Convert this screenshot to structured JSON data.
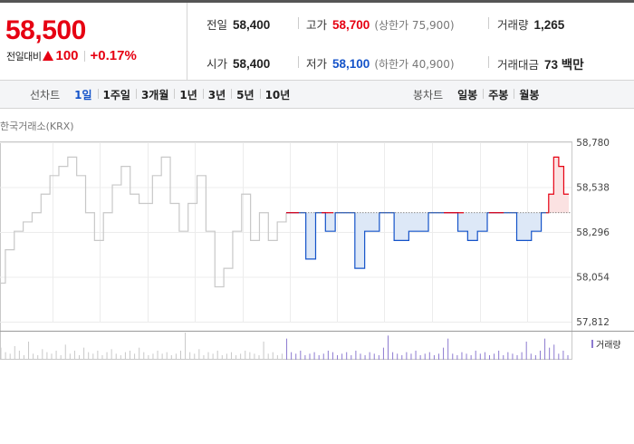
{
  "summary": {
    "current_price": "58,500",
    "change_label": "전일대비",
    "change_amount": "100",
    "change_rate": "+0.17%",
    "prev_close_label": "전일",
    "prev_close": "58,400",
    "high_label": "고가",
    "high": "58,700",
    "upper_limit": "(상한가 75,900)",
    "volume_label": "거래량",
    "volume": "1,265",
    "open_label": "시가",
    "open": "58,400",
    "low_label": "저가",
    "low": "58,100",
    "lower_limit": "(하한가 40,900)",
    "trade_value_label": "거래대금",
    "trade_value": "73 백만",
    "colors": {
      "up": "#e60012",
      "down": "#1453c9"
    }
  },
  "tabs": {
    "line_title": "선차트",
    "line_periods": [
      "1일",
      "1주일",
      "3개월",
      "1년",
      "3년",
      "5년",
      "10년"
    ],
    "line_active": "1일",
    "candle_title": "봉차트",
    "candle_periods": [
      "일봉",
      "주봉",
      "월봉"
    ]
  },
  "chart": {
    "source": "한국거래소(KRX)",
    "volume_legend": "거래량"
  },
  "chart_data": {
    "type": "line",
    "ylim": [
      57812,
      58780
    ],
    "y_ticks": [
      "58,780",
      "58,538",
      "58,296",
      "58,054",
      "57,812"
    ],
    "y_tick_values": [
      58780,
      58538,
      58296,
      58054,
      57812
    ],
    "reference_price": 58400,
    "grid": true,
    "series": [
      {
        "segment": "previous",
        "color": "#c8c8c8",
        "values": [
          58020,
          58200,
          58200,
          58300,
          58300,
          58350,
          58350,
          58400,
          58400,
          58500,
          58500,
          58600,
          58600,
          58650,
          58650,
          58700,
          58700,
          58600,
          58600,
          58400,
          58400,
          58250,
          58250,
          58400,
          58400,
          58550,
          58550,
          58650,
          58650,
          58500,
          58500,
          58450,
          58450,
          58450,
          58600,
          58600,
          58700,
          58700,
          58450,
          58450,
          58300,
          58300,
          58450,
          58450,
          58600,
          58600,
          58300,
          58300,
          58000,
          58000,
          58100,
          58100,
          58300,
          58300,
          58500,
          58500,
          58250,
          58250,
          58400,
          58400,
          58250,
          58250,
          58350,
          58350,
          58400
        ]
      },
      {
        "segment": "today",
        "color": "#1453c9",
        "fill": "#dde8f7",
        "values": [
          58400,
          58400,
          58400,
          58400,
          58150,
          58150,
          58400,
          58400,
          58300,
          58300,
          58400,
          58400,
          58400,
          58400,
          58100,
          58100,
          58300,
          58300,
          58300,
          58400,
          58400,
          58400,
          58250,
          58250,
          58250,
          58300,
          58300,
          58300,
          58300,
          58400,
          58400,
          58400,
          58400,
          58400,
          58400,
          58300,
          58300,
          58250,
          58250,
          58300,
          58300,
          58400,
          58400,
          58400,
          58400,
          58400,
          58400,
          58250,
          58250,
          58250,
          58300,
          58300,
          58400,
          58400
        ]
      },
      {
        "segment": "today-above",
        "color": "#e60012",
        "fill": "#fbe2e2",
        "values": [
          58400,
          58500,
          58500,
          58700,
          58700,
          58650,
          58650,
          58500,
          58500,
          58500
        ]
      }
    ],
    "volume": [
      8,
      5,
      4,
      9,
      6,
      3,
      12,
      4,
      3,
      7,
      5,
      4,
      6,
      3,
      10,
      4,
      6,
      3,
      8,
      5,
      4,
      6,
      3,
      5,
      7,
      4,
      3,
      5,
      6,
      4,
      8,
      5,
      3,
      4,
      6,
      4,
      5,
      3,
      4,
      6,
      18,
      5,
      4,
      7,
      3,
      5,
      4,
      6,
      3,
      4,
      5,
      3,
      4,
      6,
      5,
      4,
      3,
      12,
      4,
      5,
      3,
      4,
      14,
      5,
      4,
      6,
      3,
      4,
      5,
      3,
      4,
      6,
      5,
      3,
      4,
      5,
      3,
      6,
      4,
      3,
      5,
      4,
      3,
      8,
      16,
      5,
      4,
      3,
      5,
      4,
      6,
      3,
      4,
      5,
      3,
      4,
      8,
      14,
      4,
      3,
      5,
      4,
      3,
      6,
      4,
      5,
      3,
      4,
      6,
      3,
      5,
      4,
      3,
      5,
      12,
      4,
      3,
      6,
      14,
      8,
      10,
      4,
      6,
      3
    ]
  }
}
